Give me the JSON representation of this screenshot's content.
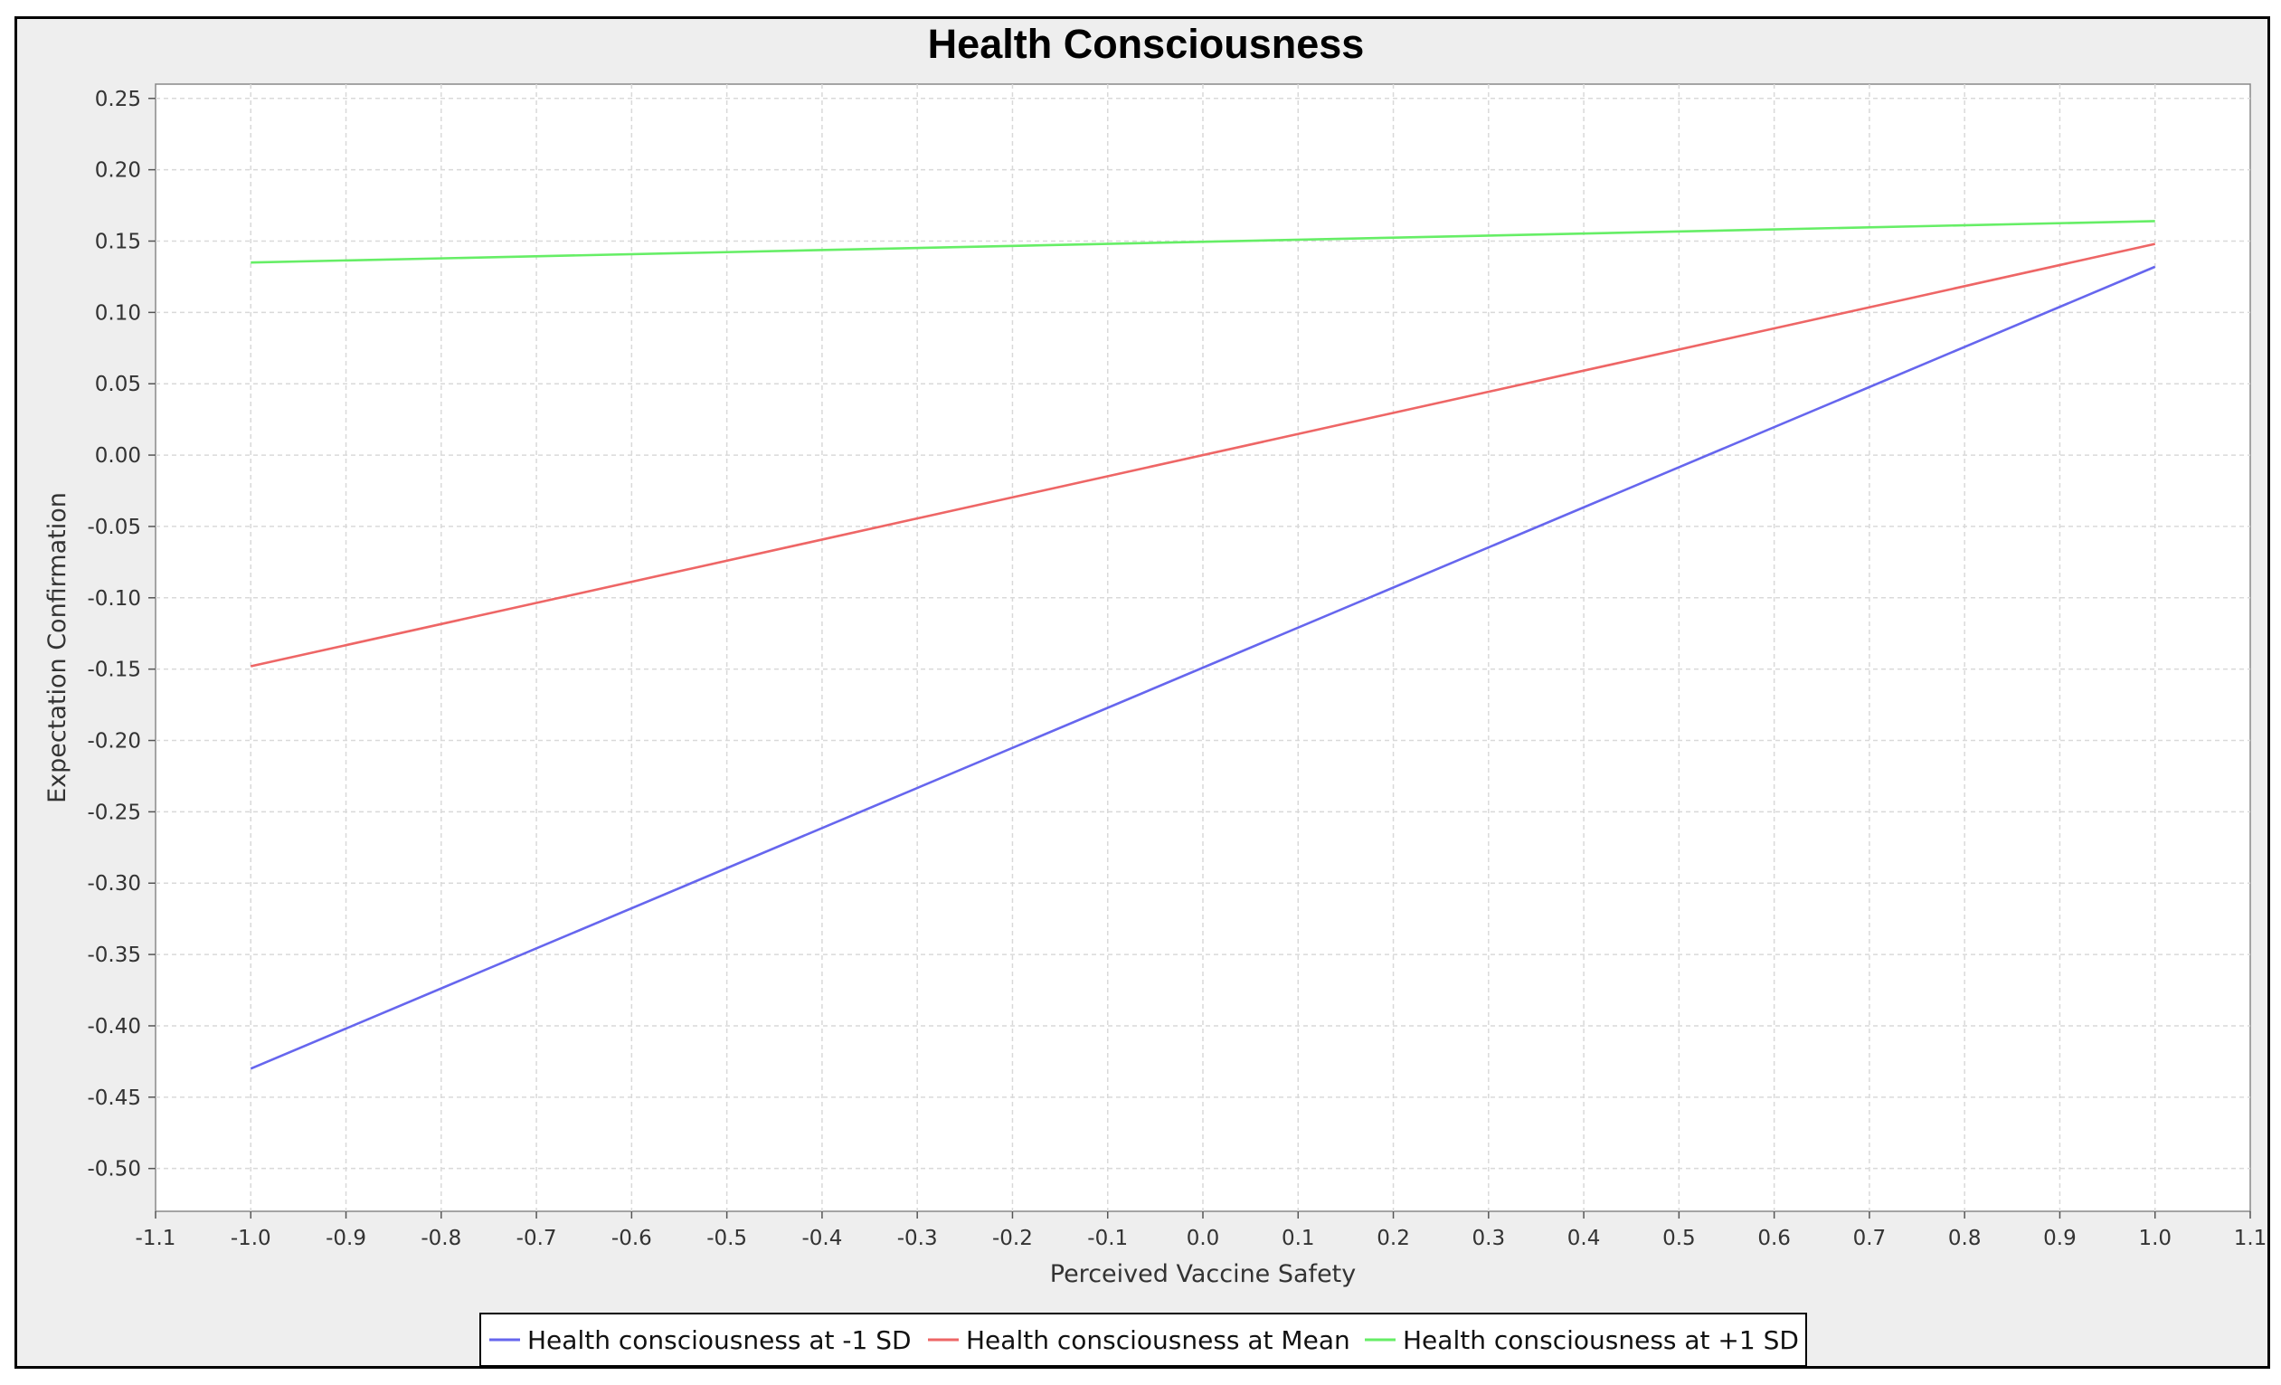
{
  "chart_data": {
    "type": "line",
    "title": "Health Consciousness",
    "xlabel": "Perceived Vaccine Safety",
    "ylabel": "Expectation Confirmation",
    "xlim": [
      -1.1,
      1.1
    ],
    "ylim": [
      -0.53,
      0.26
    ],
    "xticks": [
      "-1.1",
      "-1.0",
      "-0.9",
      "-0.8",
      "-0.7",
      "-0.6",
      "-0.5",
      "-0.4",
      "-0.3",
      "-0.2",
      "-0.1",
      "0.0",
      "0.1",
      "0.2",
      "0.3",
      "0.4",
      "0.5",
      "0.6",
      "0.7",
      "0.8",
      "0.9",
      "1.0",
      "1.1"
    ],
    "yticks": [
      "0.25",
      "0.20",
      "0.15",
      "0.10",
      "0.05",
      "0.00",
      "-0.05",
      "-0.10",
      "-0.15",
      "-0.20",
      "-0.25",
      "-0.30",
      "-0.35",
      "-0.40",
      "-0.45",
      "-0.50"
    ],
    "grid": true,
    "legend_position": "bottom",
    "series": [
      {
        "name": "Health consciousness at -1 SD",
        "color": "#6666ee",
        "x": [
          -1.0,
          1.0
        ],
        "y": [
          -0.43,
          0.132
        ]
      },
      {
        "name": "Health consciousness at Mean",
        "color": "#ee6666",
        "x": [
          -1.0,
          1.0
        ],
        "y": [
          -0.148,
          0.148
        ]
      },
      {
        "name": "Health consciousness at +1 SD",
        "color": "#66ee66",
        "x": [
          -1.0,
          1.0
        ],
        "y": [
          0.135,
          0.164
        ]
      }
    ]
  }
}
